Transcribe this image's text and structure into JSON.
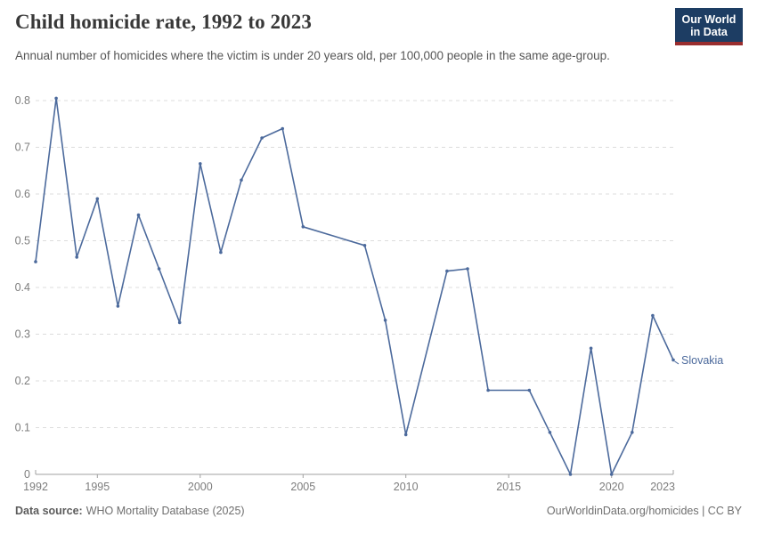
{
  "header": {
    "title": "Child homicide rate, 1992 to 2023",
    "subtitle": "Annual number of homicides where the victim is under 20 years old, per 100,000 people in the same age-group.",
    "logo": {
      "line1": "Our World",
      "line2": "in Data",
      "bg_color": "#1d3d63",
      "accent_color": "#992d2e"
    }
  },
  "footer": {
    "source_label": "Data source:",
    "source_value": "WHO Mortality Database (2025)",
    "link": "OurWorldinData.org/homicides | CC BY"
  },
  "chart_data": {
    "type": "line",
    "title": "Child homicide rate, 1992 to 2023",
    "xlabel": "",
    "ylabel": "",
    "xlim": [
      1992,
      2023
    ],
    "ylim": [
      0,
      0.8
    ],
    "x_ticks": [
      1992,
      1995,
      2000,
      2005,
      2010,
      2015,
      2020,
      2023
    ],
    "y_ticks": [
      0,
      0.1,
      0.2,
      0.3,
      0.4,
      0.5,
      0.6,
      0.7,
      0.8
    ],
    "grid": "horizontal-dashed",
    "legend_position": "end-of-line-label",
    "gap_years_no_marker": [
      2006,
      2007,
      2011,
      2015
    ],
    "series": [
      {
        "name": "Slovakia",
        "color": "#4c6a9c",
        "points": [
          [
            1992,
            0.455
          ],
          [
            1993,
            0.805
          ],
          [
            1994,
            0.465
          ],
          [
            1995,
            0.59
          ],
          [
            1996,
            0.36
          ],
          [
            1997,
            0.555
          ],
          [
            1998,
            0.44
          ],
          [
            1999,
            0.325
          ],
          [
            2000,
            0.665
          ],
          [
            2001,
            0.475
          ],
          [
            2002,
            0.63
          ],
          [
            2003,
            0.72
          ],
          [
            2004,
            0.74
          ],
          [
            2005,
            0.53
          ],
          [
            2008,
            0.49
          ],
          [
            2009,
            0.33
          ],
          [
            2010,
            0.085
          ],
          [
            2012,
            0.435
          ],
          [
            2013,
            0.44
          ],
          [
            2014,
            0.18
          ],
          [
            2016,
            0.18
          ],
          [
            2017,
            0.09
          ],
          [
            2018,
            0
          ],
          [
            2019,
            0.27
          ],
          [
            2020,
            0
          ],
          [
            2021,
            0.09
          ],
          [
            2022,
            0.34
          ],
          [
            2023,
            0.245
          ]
        ]
      }
    ],
    "layout": {
      "grid_color": "#dcdcdc",
      "axis_color": "#a0a0a0",
      "tick_label_color": "#7d7d7d"
    }
  }
}
